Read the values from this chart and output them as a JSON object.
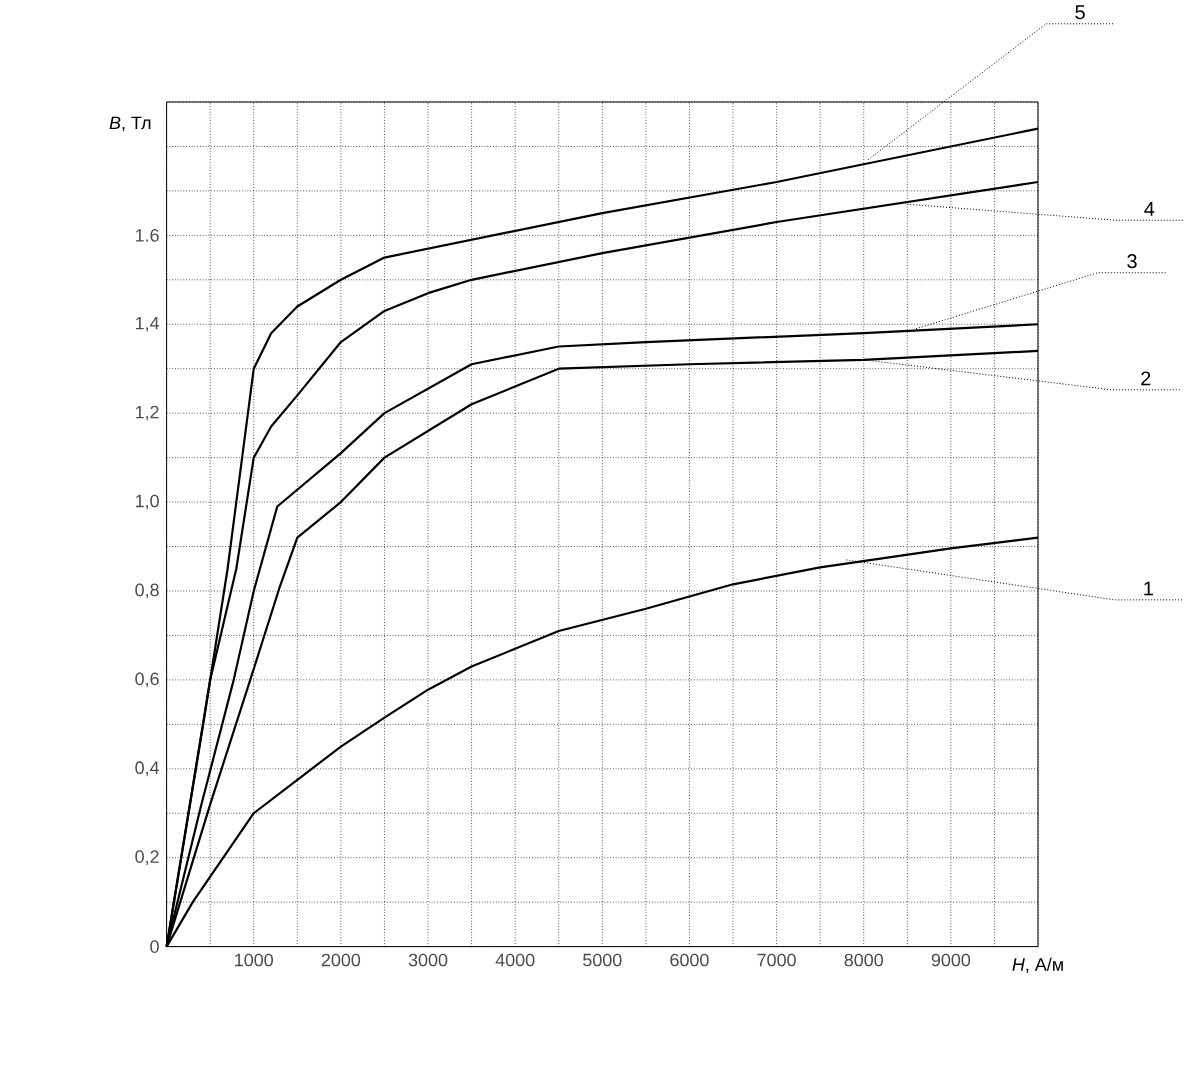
{
  "chart_data": {
    "type": "line",
    "xlabel": "*H*, А/м",
    "ylabel": "*B*, Тл",
    "xlim": [
      0,
      10000
    ],
    "ylim": [
      0,
      1.9
    ],
    "xticks": [
      {
        "value": 0,
        "label": null
      },
      {
        "value": 500,
        "label": null
      },
      1000,
      {
        "value": 1500,
        "label": null
      },
      2000,
      {
        "value": 2500,
        "label": null
      },
      3000,
      {
        "value": 3500,
        "label": null
      },
      4000,
      {
        "value": 4500,
        "label": null
      },
      5000,
      {
        "value": 5500,
        "label": null
      },
      6000,
      {
        "value": 6500,
        "label": null
      },
      7000,
      {
        "value": 7500,
        "label": null
      },
      8000,
      {
        "value": 8500,
        "label": null
      },
      9000,
      {
        "value": 9500,
        "label": null
      },
      {
        "value": 10000,
        "label": null
      }
    ],
    "yticks": [
      0,
      {
        "value": 0.1,
        "label": null
      },
      {
        "value": 0.2,
        "label": "0,2"
      },
      {
        "value": 0.3,
        "label": null
      },
      {
        "value": 0.4,
        "label": "0,4"
      },
      {
        "value": 0.5,
        "label": null
      },
      {
        "value": 0.6,
        "label": "0,6"
      },
      {
        "value": 0.7,
        "label": null
      },
      {
        "value": 0.8,
        "label": "0,8"
      },
      {
        "value": 0.9,
        "label": null
      },
      {
        "value": 1.0,
        "label": "1,0"
      },
      {
        "value": 1.1,
        "label": null
      },
      {
        "value": 1.2,
        "label": "1,2"
      },
      {
        "value": 1.3,
        "label": null
      },
      {
        "value": 1.4,
        "label": "1,4"
      },
      {
        "value": 1.5,
        "label": null
      },
      1.6,
      {
        "value": 1.7,
        "label": null
      },
      {
        "value": 1.8,
        "label": null
      },
      {
        "value": 1.9,
        "label": null
      }
    ],
    "grid": true,
    "marker": "none",
    "line_style": "solid",
    "series": [
      {
        "color": "#000000",
        "x": [
          0,
          300,
          650,
          1000,
          1500,
          2000,
          2500,
          3000,
          3500,
          4500,
          5500,
          6500,
          7500,
          9000,
          10000
        ],
        "values": [
          0,
          0.1,
          0.2,
          0.3,
          0.375,
          0.45,
          0.515,
          0.578,
          0.63,
          0.71,
          0.76,
          0.815,
          0.853,
          0.896,
          0.92
        ]
      },
      {
        "color": "#000000",
        "x": [
          0,
          500,
          960,
          1300,
          1500,
          2000,
          2500,
          3500,
          4500,
          6000,
          8000,
          10000
        ],
        "values": [
          0,
          0.32,
          0.6,
          0.81,
          0.92,
          1.0,
          1.1,
          1.22,
          1.3,
          1.31,
          1.32,
          1.34
        ]
      },
      {
        "color": "#000000",
        "x": [
          0,
          400,
          770,
          1000,
          1270,
          2000,
          2500,
          3500,
          4500,
          5500,
          8000,
          10000
        ],
        "values": [
          0,
          0.32,
          0.6,
          0.8,
          0.99,
          1.11,
          1.2,
          1.31,
          1.35,
          1.36,
          1.38,
          1.4
        ]
      },
      {
        "color": "#000000",
        "x": [
          0,
          500,
          800,
          1000,
          1200,
          1500,
          2000,
          2500,
          3000,
          3500,
          5000,
          7000,
          10000
        ],
        "values": [
          0,
          0.6,
          0.85,
          1.1,
          1.17,
          1.24,
          1.36,
          1.43,
          1.47,
          1.5,
          1.56,
          1.63,
          1.72
        ]
      },
      {
        "color": "#000000",
        "x": [
          0,
          420,
          700,
          1000,
          1200,
          1500,
          2000,
          2500,
          3000,
          5000,
          7000,
          10000
        ],
        "values": [
          0,
          0.5,
          0.85,
          1.3,
          1.38,
          1.44,
          1.5,
          1.55,
          1.57,
          1.65,
          1.72,
          1.84
        ]
      }
    ],
    "annotations": [
      {
        "text": "1",
        "x": 7800,
        "y": 0.87
      },
      {
        "text": "2",
        "x": 8000,
        "y": 1.32
      },
      {
        "text": "3",
        "x": 8600,
        "y": 1.39
      },
      {
        "text": "4",
        "x": 8500,
        "y": 1.67
      },
      {
        "text": "5",
        "x": 8050,
        "y": 1.77
      }
    ]
  }
}
